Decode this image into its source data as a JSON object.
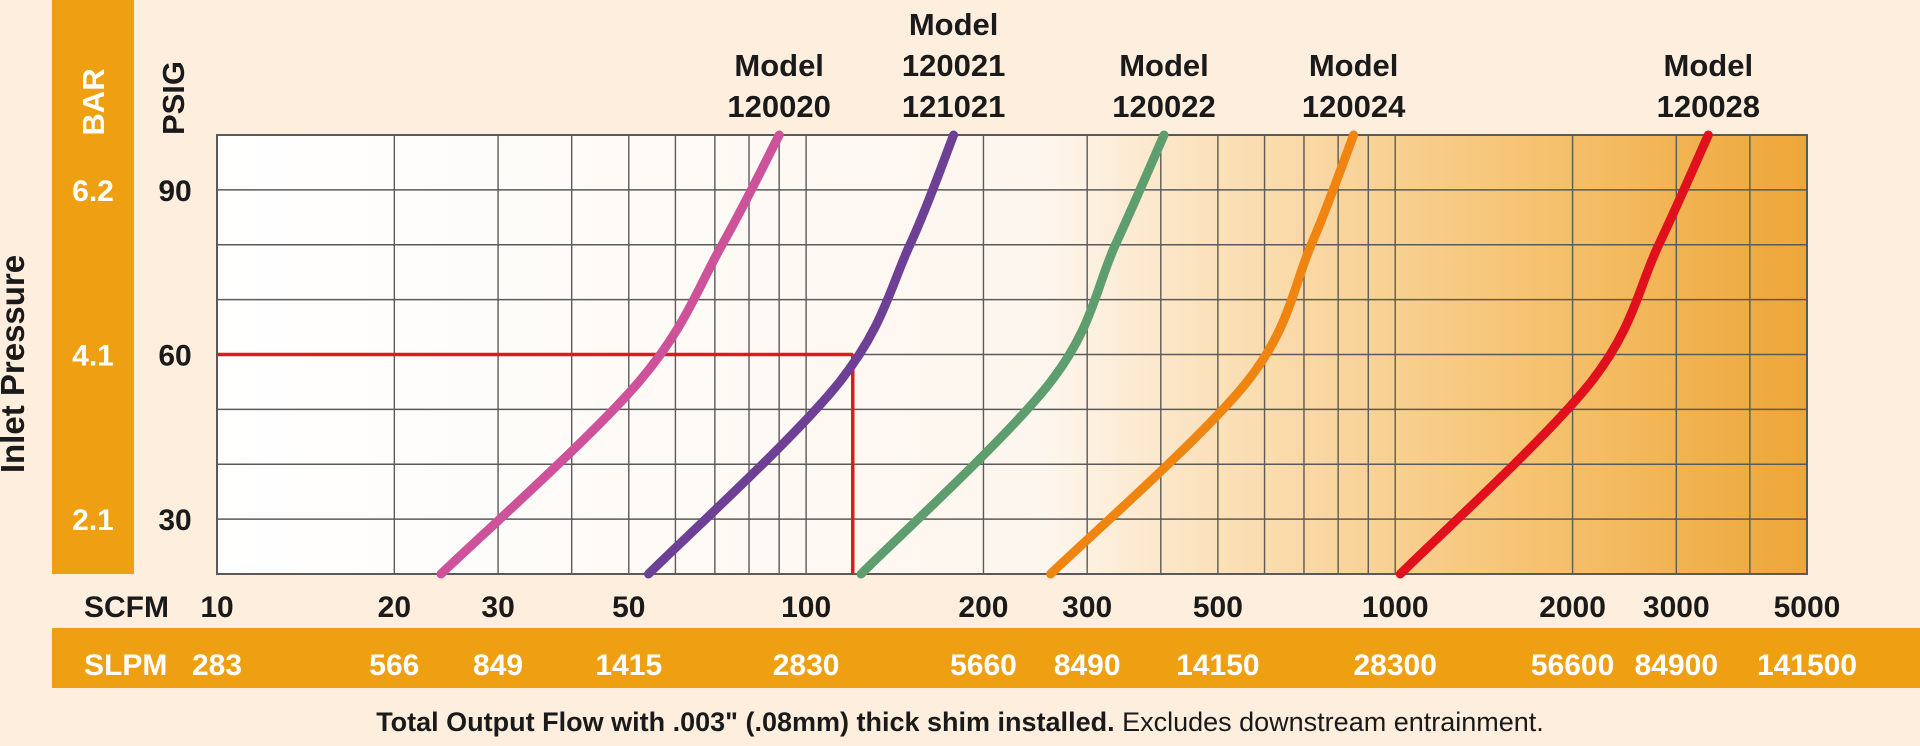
{
  "chart_data": {
    "type": "line",
    "x_scale": "log",
    "y_scale": "linear",
    "xlim": [
      10,
      5000
    ],
    "ylim": [
      20,
      100
    ],
    "y_axis": {
      "title": "Inlet Pressure",
      "psig_label": "PSIG",
      "bar_label": "BAR",
      "psig_ticks": [
        "90",
        "60",
        "30"
      ],
      "bar_ticks": [
        "6.2",
        "4.1",
        "2.1"
      ],
      "tick_values": [
        90,
        60,
        30
      ]
    },
    "x_axis": {
      "scfm_label": "SCFM",
      "slpm_label": "SLPM",
      "scfm_ticks": [
        "10",
        "20",
        "30",
        "50",
        "100",
        "200",
        "300",
        "500",
        "1000",
        "2000",
        "3000",
        "5000"
      ],
      "slpm_ticks": [
        "283",
        "566",
        "849",
        "1415",
        "2830",
        "5660",
        "8490",
        "14150",
        "28300",
        "56600",
        "84900",
        "141500"
      ],
      "tick_values": [
        10,
        20,
        30,
        50,
        100,
        200,
        300,
        500,
        1000,
        2000,
        3000,
        5000
      ]
    },
    "series": [
      {
        "name": [
          "Model",
          "120020"
        ],
        "color": "#cd529a",
        "points": [
          [
            24,
            20
          ],
          [
            52,
            55
          ],
          [
            72,
            80
          ],
          [
            90,
            100
          ]
        ]
      },
      {
        "name": [
          "Model",
          "120021",
          "121021"
        ],
        "color": "#6d4096",
        "points": [
          [
            54,
            20
          ],
          [
            114,
            55
          ],
          [
            150,
            80
          ],
          [
            178,
            100
          ]
        ]
      },
      {
        "name": [
          "Model",
          "120022"
        ],
        "color": "#5e9e6e",
        "points": [
          [
            124,
            20
          ],
          [
            260,
            55
          ],
          [
            335,
            80
          ],
          [
            405,
            100
          ]
        ]
      },
      {
        "name": [
          "Model",
          "120024"
        ],
        "color": "#ef8410",
        "points": [
          [
            260,
            20
          ],
          [
            560,
            55
          ],
          [
            720,
            80
          ],
          [
            850,
            100
          ]
        ]
      },
      {
        "name": [
          "Model",
          "120028"
        ],
        "color": "#e0111c",
        "points": [
          [
            1020,
            20
          ],
          [
            2150,
            55
          ],
          [
            2800,
            80
          ],
          [
            3400,
            100
          ]
        ]
      }
    ],
    "example_lookup": {
      "pressure_psig": 60,
      "flow_scfm": 120,
      "color": "#d81c22"
    },
    "caption_bold": "Total Output Flow with .003\" (.08mm) thick shim installed.",
    "caption_rest": " Excludes downstream entrainment."
  },
  "colors": {
    "band": "#eea012",
    "page_bg": "#fdeedd",
    "grid": "#5a5a5a",
    "text": "#1a1a1a",
    "band_text": "#ffffff"
  }
}
